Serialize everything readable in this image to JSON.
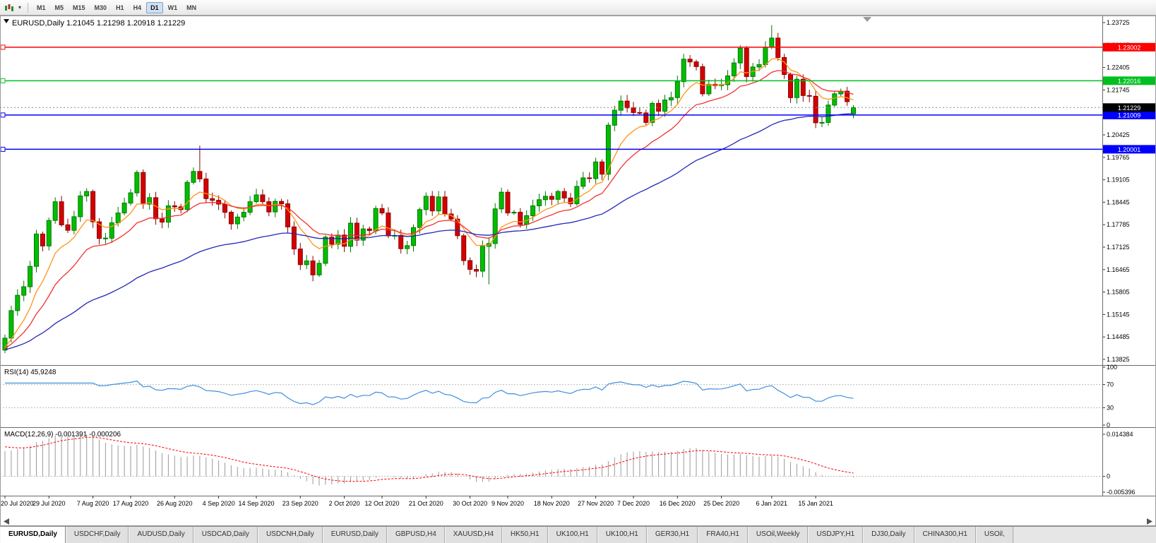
{
  "toolbar": {
    "timeframes": [
      "M1",
      "M5",
      "M15",
      "M30",
      "H1",
      "H4",
      "D1",
      "W1",
      "MN"
    ],
    "active_timeframe": "D1",
    "dropdown_caret": "▾"
  },
  "chart": {
    "title": "EURUSD,Daily",
    "ohlc_text": "1.21045 1.21298 1.20918 1.21229",
    "colors": {
      "bull_fill": "#00BE00",
      "bull_stroke": "#007700",
      "bear_fill": "#D40000",
      "bear_stroke": "#8A0000",
      "ma_fast": "#FF9416",
      "ma_mid": "#F23030",
      "ma_slow": "#2228B8",
      "rsi_line": "#3E8EDE",
      "macd_hist": "#9A9A9A",
      "macd_signal": "#FF0000",
      "level_red": "#FF0000",
      "level_green": "#00C020",
      "level_blue": "#0000FF",
      "price_tag_bg": "#000000"
    },
    "hlines": [
      {
        "price": 1.23002,
        "label": "1.23002",
        "color_key": "level_red"
      },
      {
        "price": 1.22016,
        "label": "1.22016",
        "color_key": "level_green"
      },
      {
        "price": 1.21009,
        "label": "1.21009",
        "color_key": "level_blue"
      },
      {
        "price": 1.20001,
        "label": "1.20001",
        "color_key": "level_blue"
      }
    ],
    "current_price_tag": {
      "price": 1.21229,
      "label": "1.21229"
    },
    "y_axis_ticks": [
      "1.23725",
      "1.23065",
      "1.22405",
      "1.21745",
      "1.21085",
      "1.20425",
      "1.19765",
      "1.19105",
      "1.18445",
      "1.17785",
      "1.17125",
      "1.16465",
      "1.15805",
      "1.15145",
      "1.14485",
      "1.13825"
    ]
  },
  "chart_data": {
    "type": "candlestick",
    "symbol": "EURUSD",
    "period": "Daily",
    "first_open": 1.141,
    "closes": [
      1.1445,
      1.1526,
      1.1571,
      1.1596,
      1.1656,
      1.1751,
      1.1716,
      1.1791,
      1.1846,
      1.1778,
      1.1762,
      1.1802,
      1.1863,
      1.1876,
      1.1787,
      1.1738,
      1.1739,
      1.1784,
      1.1813,
      1.1842,
      1.1872,
      1.1932,
      1.1839,
      1.1858,
      1.1796,
      1.1786,
      1.1834,
      1.1831,
      1.1823,
      1.1903,
      1.1935,
      1.1913,
      1.1855,
      1.185,
      1.1839,
      1.1815,
      1.1781,
      1.1801,
      1.1815,
      1.1846,
      1.1866,
      1.1846,
      1.1816,
      1.1847,
      1.184,
      1.1772,
      1.1707,
      1.1661,
      1.1672,
      1.1631,
      1.1665,
      1.1742,
      1.1721,
      1.1748,
      1.1715,
      1.1783,
      1.1733,
      1.1766,
      1.1761,
      1.1826,
      1.1813,
      1.1746,
      1.1747,
      1.1708,
      1.1717,
      1.177,
      1.1823,
      1.1862,
      1.1819,
      1.186,
      1.181,
      1.1795,
      1.1746,
      1.1673,
      1.1647,
      1.1642,
      1.1715,
      1.1723,
      1.1825,
      1.1874,
      1.1813,
      1.1815,
      1.1779,
      1.1805,
      1.1834,
      1.1852,
      1.1862,
      1.1853,
      1.1876,
      1.1857,
      1.184,
      1.1891,
      1.1916,
      1.1914,
      1.1963,
      1.1927,
      1.2071,
      1.2115,
      1.2142,
      1.2122,
      1.2108,
      1.2107,
      1.2079,
      1.2135,
      1.2112,
      1.2145,
      1.2152,
      1.2199,
      1.2265,
      1.2257,
      1.2243,
      1.2163,
      1.2191,
      1.2187,
      1.219,
      1.2216,
      1.2254,
      1.2297,
      1.2214,
      1.2242,
      1.2249,
      1.23,
      1.2327,
      1.227,
      1.222,
      1.2152,
      1.2206,
      1.2158,
      1.2156,
      1.2078,
      1.2079,
      1.213,
      1.2163,
      1.2171,
      1.214,
      1.21229
    ],
    "last_ohlc": {
      "open": 1.21045,
      "high": 1.21298,
      "low": 1.20918,
      "close": 1.21229
    },
    "high_overrides": {
      "31": 1.2011,
      "122": 1.2365
    },
    "low_overrides": {
      "49": 1.1612,
      "77": 1.1603
    },
    "moving_averages": [
      {
        "period": 8,
        "color_key": "ma_fast"
      },
      {
        "period": 16,
        "color_key": "ma_mid"
      },
      {
        "period": 50,
        "color_key": "ma_slow"
      }
    ],
    "date_labels": [
      "20 Jul 2020",
      "29 Jul 2020",
      "7 Aug 2020",
      "17 Aug 2020",
      "26 Aug 2020",
      "4 Sep 2020",
      "14 Sep 2020",
      "23 Sep 2020",
      "2 Oct 2020",
      "12 Oct 2020",
      "21 Oct 2020",
      "30 Oct 2020",
      "9 Nov 2020",
      "18 Nov 2020",
      "27 Nov 2020",
      "7 Dec 2020",
      "16 Dec 2020",
      "25 Dec 2020",
      "6 Jan 2021",
      "15 Jan 2021"
    ],
    "date_label_indices": [
      0,
      7,
      14,
      20,
      27,
      34,
      40,
      47,
      54,
      60,
      67,
      74,
      80,
      87,
      94,
      100,
      107,
      114,
      122,
      129
    ],
    "rsi": {
      "label": "RSI(14)",
      "value_text": "45,9248",
      "period": 14,
      "axis_labels": [
        "100",
        "70",
        "30",
        "0"
      ],
      "levels": [
        70,
        30
      ]
    },
    "macd": {
      "label": "MACD(12,26,9)",
      "values_text": "-0.001391 -0.000206",
      "fast": 12,
      "slow": 26,
      "signal": 9,
      "axis_max_label": "0.014384",
      "axis_zero_label": "0",
      "axis_min_label": "-0.005396"
    }
  },
  "tabs": [
    "EURUSD,Daily",
    "USDCHF,Daily",
    "AUDUSD,Daily",
    "USDCAD,Daily",
    "USDCNH,Daily",
    "EURUSD,Daily",
    "GBPUSD,H4",
    "XAUUSD,H4",
    "HK50,H1",
    "UK100,H1",
    "UK100,H1",
    "GER30,H1",
    "FRA40,H1",
    "USOil,Weekly",
    "USDJPY,H1",
    "DJ30,Daily",
    "CHINA300,H1",
    "USOil,"
  ],
  "active_tab_index": 0
}
